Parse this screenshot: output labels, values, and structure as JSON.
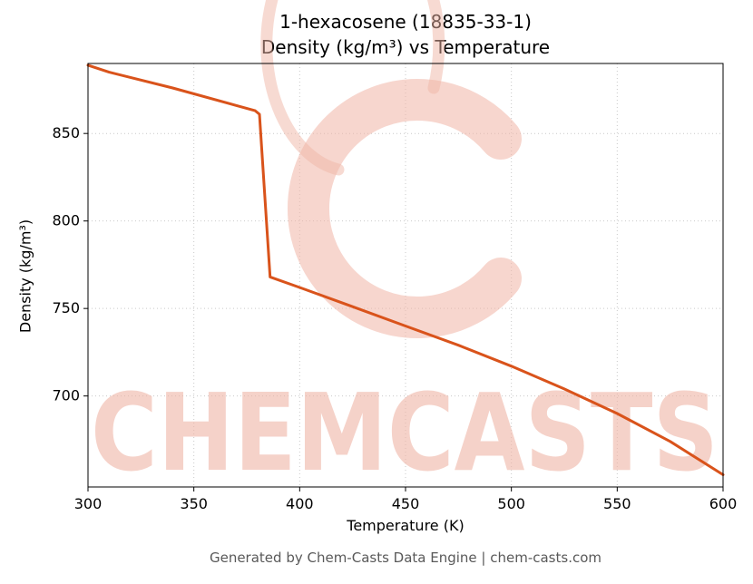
{
  "chart": {
    "title_line1": "1-hexacosene (18835-33-1)",
    "title_line2": "Density (kg/m³) vs Temperature",
    "xlabel": "Temperature (K)",
    "ylabel": "Density (kg/m³)",
    "footer": "Generated by Chem-Casts Data Engine | chem-casts.com",
    "watermark_text": "CHEMCASTS",
    "line_color": "#d9531b",
    "watermark_color": "#f0b5a6",
    "grid_color": "#c9c9c9",
    "axis_color": "#000000"
  },
  "chart_data": {
    "type": "line",
    "title": "1-hexacosene (18835-33-1) — Density (kg/m³) vs Temperature",
    "xlabel": "Temperature (K)",
    "ylabel": "Density (kg/m³)",
    "xlim": [
      300,
      600
    ],
    "ylim": [
      648,
      890
    ],
    "xticks": [
      300,
      350,
      400,
      450,
      500,
      550,
      600
    ],
    "yticks": [
      700,
      750,
      800,
      850
    ],
    "grid": true,
    "legend": false,
    "series": [
      {
        "name": "Density",
        "x": [
          300,
          310,
          340,
          370,
          379,
          381,
          386,
          400,
          425,
          450,
          475,
          500,
          525,
          550,
          575,
          600
        ],
        "y": [
          889,
          885,
          876,
          866,
          863,
          861,
          768,
          762,
          751,
          740,
          729,
          717,
          704,
          690,
          674,
          655
        ]
      }
    ]
  }
}
